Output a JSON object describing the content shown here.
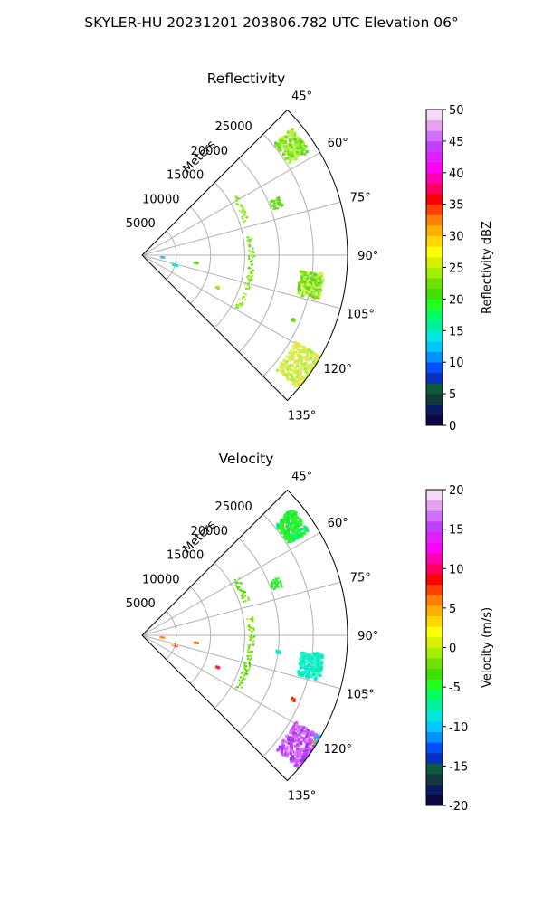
{
  "figure": {
    "suptitle": "SKYLER-HU  20231201  203806.782 UTC Elevation 06°"
  },
  "chart_data": [
    {
      "type": "polar-sector",
      "title": "Reflectivity",
      "radial_label": "Meters",
      "radial_ticks": [
        5000,
        10000,
        15000,
        20000,
        25000
      ],
      "radial_max": 30000,
      "theta_range_deg": [
        45,
        135
      ],
      "theta_ticks": [
        "45°",
        "60°",
        "75°",
        "90°",
        "105°",
        "120°",
        "135°"
      ],
      "colorbar": {
        "label": "Reflectivity dBZ",
        "min": 0,
        "max": 50,
        "ticks": [
          0,
          5,
          10,
          15,
          20,
          25,
          30,
          35,
          40,
          45,
          50
        ],
        "colors": [
          "#0a0a40",
          "#0a1a60",
          "#123a3a",
          "#0e5a3a",
          "#0a30c0",
          "#0050ff",
          "#0090ff",
          "#00c8ff",
          "#00e8e0",
          "#00f0a0",
          "#00ff60",
          "#20ff20",
          "#40e000",
          "#70e000",
          "#a0f000",
          "#d8f000",
          "#ffff00",
          "#ffd800",
          "#ffb000",
          "#ff8000",
          "#ff4000",
          "#ff0000",
          "#ff0060",
          "#ff00b0",
          "#ff00ff",
          "#e020ff",
          "#c040ff",
          "#d070ff",
          "#e8a0f0",
          "#f8d8f8"
        ]
      },
      "echo_regions": [
        {
          "r_km": 27,
          "theta_deg": 54,
          "size": 0.38,
          "kind": "strong",
          "colors": [
            "#a6f03a",
            "#7ae01a",
            "#c8f050",
            "#5cd420"
          ]
        },
        {
          "r_km": 21,
          "theta_deg": 69,
          "size": 0.18,
          "kind": "blob",
          "colors": [
            "#7ae01a",
            "#5cd420"
          ]
        },
        {
          "r_km": 25,
          "theta_deg": 100,
          "size": 0.38,
          "kind": "strong",
          "colors": [
            "#7ae01a",
            "#a6f03a",
            "#d8f050",
            "#5cd420"
          ]
        },
        {
          "r_km": 28,
          "theta_deg": 125,
          "size": 0.5,
          "kind": "strong",
          "colors": [
            "#c8f050",
            "#e0f060",
            "#a6f03a",
            "#f0e050"
          ]
        },
        {
          "r_km": 16,
          "theta_deg": 65,
          "size": 0.12,
          "kind": "line",
          "colors": [
            "#7ae01a",
            "#a6f03a"
          ]
        },
        {
          "r_km": 16,
          "theta_deg": 90,
          "size": 0.16,
          "kind": "line",
          "colors": [
            "#7ae01a",
            "#a6f03a",
            "#5cd420"
          ]
        },
        {
          "r_km": 16,
          "theta_deg": 110,
          "size": 0.16,
          "kind": "line",
          "colors": [
            "#7ae01a",
            "#a6f03a"
          ]
        },
        {
          "r_km": 8,
          "theta_deg": 98,
          "size": 0.06,
          "kind": "blob",
          "colors": [
            "#5cd420",
            "#7ae01a"
          ]
        },
        {
          "r_km": 5,
          "theta_deg": 107,
          "size": 0.08,
          "kind": "blob",
          "colors": [
            "#00d8ff",
            "#00e8e0"
          ]
        },
        {
          "r_km": 12,
          "theta_deg": 113,
          "size": 0.06,
          "kind": "blob",
          "colors": [
            "#7ae01a",
            "#d8f050"
          ]
        },
        {
          "r_km": 24,
          "theta_deg": 113,
          "size": 0.06,
          "kind": "blob",
          "colors": [
            "#7ae01a",
            "#5cd420"
          ]
        },
        {
          "r_km": 3,
          "theta_deg": 96,
          "size": 0.06,
          "kind": "blob",
          "colors": [
            "#00c8ff",
            "#00e8e0"
          ]
        }
      ]
    },
    {
      "type": "polar-sector",
      "title": "Velocity",
      "radial_label": "Meters",
      "radial_ticks": [
        5000,
        10000,
        15000,
        20000,
        25000
      ],
      "radial_max": 30000,
      "theta_range_deg": [
        45,
        135
      ],
      "theta_ticks": [
        "45°",
        "60°",
        "75°",
        "90°",
        "105°",
        "120°",
        "135°"
      ],
      "colorbar": {
        "label": "Velocity (m/s)",
        "min": -20,
        "max": 20,
        "ticks": [
          -20,
          -15,
          -10,
          -5,
          0,
          5,
          10,
          15,
          20
        ],
        "colors": [
          "#0a0a40",
          "#0a1a60",
          "#123a3a",
          "#0e5a3a",
          "#0a30c0",
          "#0050ff",
          "#0090ff",
          "#00c8ff",
          "#00e8e0",
          "#00f0a0",
          "#00ff60",
          "#20ff20",
          "#40e000",
          "#70e000",
          "#a0f000",
          "#d8f000",
          "#ffff00",
          "#ffd800",
          "#ffb000",
          "#ff8000",
          "#ff4000",
          "#ff0000",
          "#ff0060",
          "#ff00b0",
          "#ff00ff",
          "#e020ff",
          "#c040ff",
          "#d070ff",
          "#e8a0f0",
          "#f8d8f8"
        ]
      },
      "echo_regions": [
        {
          "r_km": 27,
          "theta_deg": 54,
          "size": 0.38,
          "kind": "strong",
          "colors": [
            "#20ff20",
            "#40f040",
            "#00f080",
            "#30e030"
          ]
        },
        {
          "r_km": 21,
          "theta_deg": 69,
          "size": 0.18,
          "kind": "blob",
          "colors": [
            "#20ff20",
            "#40e040"
          ]
        },
        {
          "r_km": 25,
          "theta_deg": 100,
          "size": 0.38,
          "kind": "strong",
          "colors": [
            "#00f0c0",
            "#00f0a0",
            "#40f0d0",
            "#00e8e0"
          ]
        },
        {
          "r_km": 28,
          "theta_deg": 125,
          "size": 0.5,
          "kind": "strong",
          "colors": [
            "#c040ff",
            "#d060ff",
            "#a030f0",
            "#e080ff"
          ]
        },
        {
          "r_km": 30,
          "theta_deg": 121,
          "size": 0.14,
          "kind": "blob",
          "colors": [
            "#00c8ff",
            "#0090ff",
            "#ff8000",
            "#00e8e0"
          ]
        },
        {
          "r_km": 16,
          "theta_deg": 65,
          "size": 0.12,
          "kind": "line",
          "colors": [
            "#40e000",
            "#70e000"
          ]
        },
        {
          "r_km": 16,
          "theta_deg": 90,
          "size": 0.16,
          "kind": "line",
          "colors": [
            "#40e000",
            "#70e000",
            "#a0f000"
          ]
        },
        {
          "r_km": 16,
          "theta_deg": 110,
          "size": 0.16,
          "kind": "line",
          "colors": [
            "#40e000",
            "#70e000"
          ]
        },
        {
          "r_km": 8,
          "theta_deg": 98,
          "size": 0.06,
          "kind": "blob",
          "colors": [
            "#ff4000",
            "#ff8000"
          ]
        },
        {
          "r_km": 5,
          "theta_deg": 107,
          "size": 0.08,
          "kind": "blob",
          "colors": [
            "#ff00ff",
            "#ffff00"
          ]
        },
        {
          "r_km": 12,
          "theta_deg": 113,
          "size": 0.06,
          "kind": "blob",
          "colors": [
            "#ff00b0",
            "#ff4000"
          ]
        },
        {
          "r_km": 24,
          "theta_deg": 113,
          "size": 0.06,
          "kind": "blob",
          "colors": [
            "#ff0000",
            "#ff8000"
          ]
        },
        {
          "r_km": 20,
          "theta_deg": 97,
          "size": 0.06,
          "kind": "blob",
          "colors": [
            "#00e8e0",
            "#00f0c0"
          ]
        },
        {
          "r_km": 3,
          "theta_deg": 96,
          "size": 0.06,
          "kind": "blob",
          "colors": [
            "#ffff00",
            "#ff8000"
          ]
        }
      ]
    }
  ]
}
